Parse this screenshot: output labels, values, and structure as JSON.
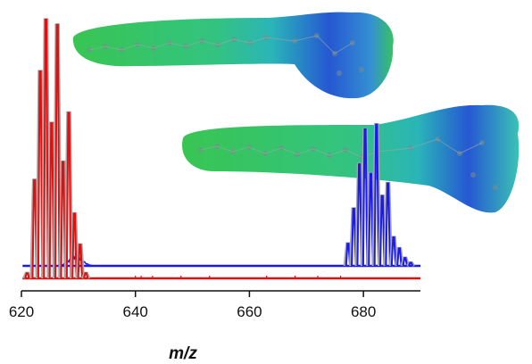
{
  "chart_data": {
    "type": "line",
    "xlabel": "m/z",
    "ylabel": "",
    "xlim": [
      620,
      690
    ],
    "x_ticks": [
      620,
      640,
      660,
      680
    ],
    "grid": false,
    "colors": {
      "red": "#e01010",
      "blue": "#1a1aee",
      "outline": "#a8a8a8"
    },
    "series": [
      {
        "color": "#e01010",
        "peaks": [
          {
            "x": 621.0,
            "y": 0.02
          },
          {
            "x": 622.3,
            "y": 0.38
          },
          {
            "x": 623.3,
            "y": 0.8
          },
          {
            "x": 624.3,
            "y": 1.0
          },
          {
            "x": 625.3,
            "y": 0.6
          },
          {
            "x": 626.3,
            "y": 0.98
          },
          {
            "x": 627.3,
            "y": 0.45
          },
          {
            "x": 628.3,
            "y": 0.64
          },
          {
            "x": 629.3,
            "y": 0.25
          },
          {
            "x": 630.3,
            "y": 0.13
          },
          {
            "x": 631.3,
            "y": 0.02
          }
        ]
      },
      {
        "color": "#1a1aee",
        "peaks": [
          {
            "x": 677.3,
            "y": 0.14
          },
          {
            "x": 678.3,
            "y": 0.36
          },
          {
            "x": 679.3,
            "y": 0.64
          },
          {
            "x": 680.3,
            "y": 0.86
          },
          {
            "x": 681.3,
            "y": 0.58
          },
          {
            "x": 682.3,
            "y": 0.89
          },
          {
            "x": 683.3,
            "y": 0.44
          },
          {
            "x": 684.3,
            "y": 0.52
          },
          {
            "x": 685.3,
            "y": 0.18
          },
          {
            "x": 686.3,
            "y": 0.11
          },
          {
            "x": 687.3,
            "y": 0.05
          },
          {
            "x": 688.3,
            "y": 0.02
          }
        ]
      }
    ]
  },
  "molecules": [
    {
      "icon": "molecule-electrostatic-surface-icon"
    },
    {
      "icon": "molecule-electrostatic-surface-icon"
    }
  ]
}
